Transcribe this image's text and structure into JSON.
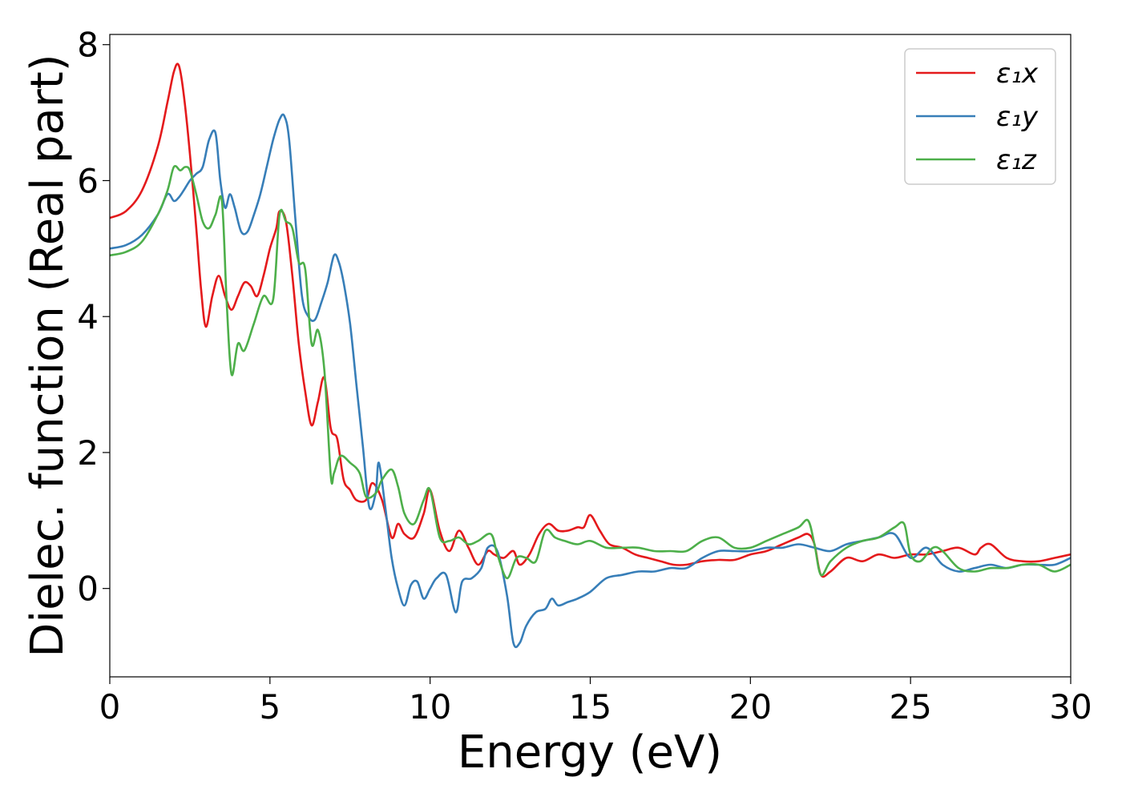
{
  "chart_data": {
    "type": "line",
    "xlabel": "Energy (eV)",
    "ylabel": "Dielec. function (Real part)",
    "xlim": [
      0,
      30
    ],
    "ylim": [
      -1.3,
      8.15
    ],
    "xticks": [
      0,
      5,
      10,
      15,
      20,
      25,
      30
    ],
    "yticks": [
      0,
      2,
      4,
      6,
      8
    ],
    "xtick_labels": [
      "0",
      "5",
      "10",
      "15",
      "20",
      "25",
      "30"
    ],
    "ytick_labels": [
      "0",
      "2",
      "4",
      "6",
      "8"
    ],
    "grid": false,
    "legend_position": "top-right",
    "series": [
      {
        "name": "ε₁x",
        "color": "#e41a1c",
        "x": [
          0,
          0.5,
          1.0,
          1.5,
          1.8,
          2.0,
          2.15,
          2.3,
          2.5,
          2.7,
          2.85,
          3.0,
          3.2,
          3.4,
          3.6,
          3.8,
          4.0,
          4.2,
          4.4,
          4.6,
          4.8,
          5.0,
          5.2,
          5.3,
          5.5,
          5.7,
          5.9,
          6.1,
          6.3,
          6.5,
          6.7,
          6.9,
          7.1,
          7.3,
          7.5,
          7.7,
          8.0,
          8.2,
          8.5,
          8.8,
          9.0,
          9.2,
          9.5,
          9.8,
          10.0,
          10.3,
          10.6,
          10.9,
          11.2,
          11.5,
          11.8,
          12.0,
          12.3,
          12.6,
          12.8,
          13.1,
          13.4,
          13.7,
          14.0,
          14.3,
          14.6,
          14.8,
          15.0,
          15.3,
          15.6,
          16.0,
          16.4,
          16.8,
          17.2,
          17.6,
          18.0,
          18.5,
          19.0,
          19.5,
          20.0,
          20.5,
          21.0,
          21.5,
          21.8,
          22.0,
          22.2,
          22.5,
          23.0,
          23.5,
          24.0,
          24.5,
          25.0,
          25.5,
          26.0,
          26.5,
          27.0,
          27.2,
          27.5,
          28.0,
          28.5,
          29.0,
          29.5,
          30.0
        ],
        "y": [
          5.45,
          5.55,
          5.85,
          6.5,
          7.15,
          7.6,
          7.7,
          7.3,
          6.4,
          5.3,
          4.4,
          3.85,
          4.3,
          4.6,
          4.3,
          4.1,
          4.3,
          4.5,
          4.45,
          4.3,
          4.6,
          5.0,
          5.3,
          5.55,
          5.4,
          4.6,
          3.6,
          2.9,
          2.4,
          2.75,
          3.1,
          2.35,
          2.2,
          1.6,
          1.45,
          1.3,
          1.3,
          1.55,
          1.3,
          0.75,
          0.95,
          0.8,
          0.75,
          1.1,
          1.45,
          0.85,
          0.55,
          0.85,
          0.6,
          0.35,
          0.55,
          0.5,
          0.45,
          0.55,
          0.35,
          0.5,
          0.8,
          0.95,
          0.85,
          0.85,
          0.9,
          0.9,
          1.08,
          0.85,
          0.65,
          0.6,
          0.5,
          0.45,
          0.4,
          0.35,
          0.35,
          0.4,
          0.42,
          0.42,
          0.5,
          0.55,
          0.65,
          0.75,
          0.8,
          0.65,
          0.2,
          0.25,
          0.45,
          0.4,
          0.5,
          0.45,
          0.5,
          0.5,
          0.55,
          0.6,
          0.5,
          0.6,
          0.65,
          0.45,
          0.4,
          0.4,
          0.45,
          0.5
        ]
      },
      {
        "name": "ε₁y",
        "color": "#377eb8",
        "x": [
          0,
          0.5,
          1.0,
          1.5,
          1.8,
          2.0,
          2.15,
          2.3,
          2.5,
          2.7,
          2.9,
          3.1,
          3.3,
          3.45,
          3.6,
          3.75,
          3.9,
          4.1,
          4.3,
          4.5,
          4.7,
          4.9,
          5.1,
          5.3,
          5.45,
          5.6,
          5.8,
          6.0,
          6.2,
          6.4,
          6.6,
          6.8,
          7.0,
          7.15,
          7.3,
          7.5,
          7.7,
          7.9,
          8.1,
          8.3,
          8.4,
          8.6,
          8.8,
          9.0,
          9.2,
          9.4,
          9.6,
          9.8,
          10.0,
          10.2,
          10.5,
          10.8,
          11.0,
          11.3,
          11.6,
          11.8,
          12.1,
          12.4,
          12.6,
          12.8,
          13.0,
          13.3,
          13.6,
          13.8,
          14.0,
          14.3,
          14.6,
          15.0,
          15.5,
          16.0,
          16.5,
          17.0,
          17.5,
          18.0,
          18.5,
          19.0,
          19.5,
          20.0,
          20.5,
          21.0,
          21.5,
          22.0,
          22.5,
          23.0,
          23.5,
          24.0,
          24.5,
          25.0,
          25.5,
          26.0,
          26.5,
          27.0,
          27.5,
          28.0,
          28.5,
          29.0,
          29.5,
          30.0
        ],
        "y": [
          5.0,
          5.05,
          5.2,
          5.5,
          5.8,
          5.7,
          5.75,
          5.85,
          6.0,
          6.1,
          6.2,
          6.6,
          6.7,
          6.0,
          5.6,
          5.8,
          5.6,
          5.25,
          5.25,
          5.5,
          5.8,
          6.2,
          6.6,
          6.9,
          6.95,
          6.6,
          5.4,
          4.3,
          4.0,
          3.95,
          4.2,
          4.5,
          4.9,
          4.8,
          4.5,
          3.9,
          3.0,
          2.1,
          1.2,
          1.4,
          1.85,
          1.2,
          0.45,
          0.0,
          -0.25,
          0.05,
          0.1,
          -0.15,
          0.0,
          0.15,
          0.2,
          -0.35,
          0.1,
          0.15,
          0.3,
          0.6,
          0.55,
          -0.1,
          -0.8,
          -0.8,
          -0.55,
          -0.35,
          -0.3,
          -0.15,
          -0.25,
          -0.2,
          -0.15,
          -0.05,
          0.15,
          0.2,
          0.25,
          0.25,
          0.3,
          0.3,
          0.45,
          0.55,
          0.55,
          0.55,
          0.6,
          0.6,
          0.65,
          0.6,
          0.55,
          0.65,
          0.7,
          0.75,
          0.8,
          0.45,
          0.6,
          0.35,
          0.25,
          0.3,
          0.35,
          0.3,
          0.35,
          0.35,
          0.35,
          0.45
        ]
      },
      {
        "name": "ε₁z",
        "color": "#4daf4a",
        "x": [
          0,
          0.5,
          1.0,
          1.5,
          1.8,
          2.0,
          2.2,
          2.35,
          2.5,
          2.7,
          2.9,
          3.1,
          3.3,
          3.5,
          3.65,
          3.8,
          4.0,
          4.2,
          4.5,
          4.8,
          5.1,
          5.3,
          5.5,
          5.7,
          5.9,
          6.1,
          6.3,
          6.5,
          6.7,
          6.9,
          7.0,
          7.2,
          7.5,
          7.8,
          8.0,
          8.3,
          8.5,
          8.8,
          9.0,
          9.2,
          9.5,
          9.8,
          10.0,
          10.3,
          10.6,
          10.9,
          11.2,
          11.5,
          11.9,
          12.1,
          12.4,
          12.7,
          13.0,
          13.3,
          13.6,
          13.9,
          14.2,
          14.6,
          15.0,
          15.5,
          16.0,
          16.5,
          17.0,
          17.5,
          18.0,
          18.5,
          19.0,
          19.5,
          20.0,
          20.5,
          21.0,
          21.5,
          21.8,
          22.0,
          22.2,
          22.5,
          23.0,
          23.5,
          24.0,
          24.5,
          24.8,
          25.0,
          25.3,
          25.7,
          26.0,
          26.5,
          27.0,
          27.5,
          28.0,
          28.5,
          29.0,
          29.5,
          30.0
        ],
        "y": [
          4.9,
          4.95,
          5.1,
          5.5,
          5.85,
          6.2,
          6.15,
          6.2,
          6.15,
          5.8,
          5.4,
          5.3,
          5.5,
          5.7,
          4.2,
          3.15,
          3.6,
          3.5,
          3.9,
          4.3,
          4.25,
          5.5,
          5.4,
          5.3,
          4.8,
          4.7,
          3.6,
          3.8,
          3.2,
          1.65,
          1.7,
          1.95,
          1.85,
          1.7,
          1.35,
          1.4,
          1.6,
          1.75,
          1.5,
          1.1,
          0.95,
          1.3,
          1.45,
          0.75,
          0.7,
          0.75,
          0.65,
          0.7,
          0.8,
          0.5,
          0.15,
          0.45,
          0.45,
          0.4,
          0.85,
          0.75,
          0.7,
          0.65,
          0.7,
          0.6,
          0.6,
          0.6,
          0.55,
          0.55,
          0.55,
          0.7,
          0.75,
          0.6,
          0.6,
          0.7,
          0.8,
          0.9,
          1.0,
          0.65,
          0.2,
          0.4,
          0.6,
          0.7,
          0.75,
          0.9,
          0.95,
          0.5,
          0.4,
          0.6,
          0.55,
          0.3,
          0.25,
          0.3,
          0.3,
          0.35,
          0.35,
          0.25,
          0.35
        ]
      }
    ]
  }
}
